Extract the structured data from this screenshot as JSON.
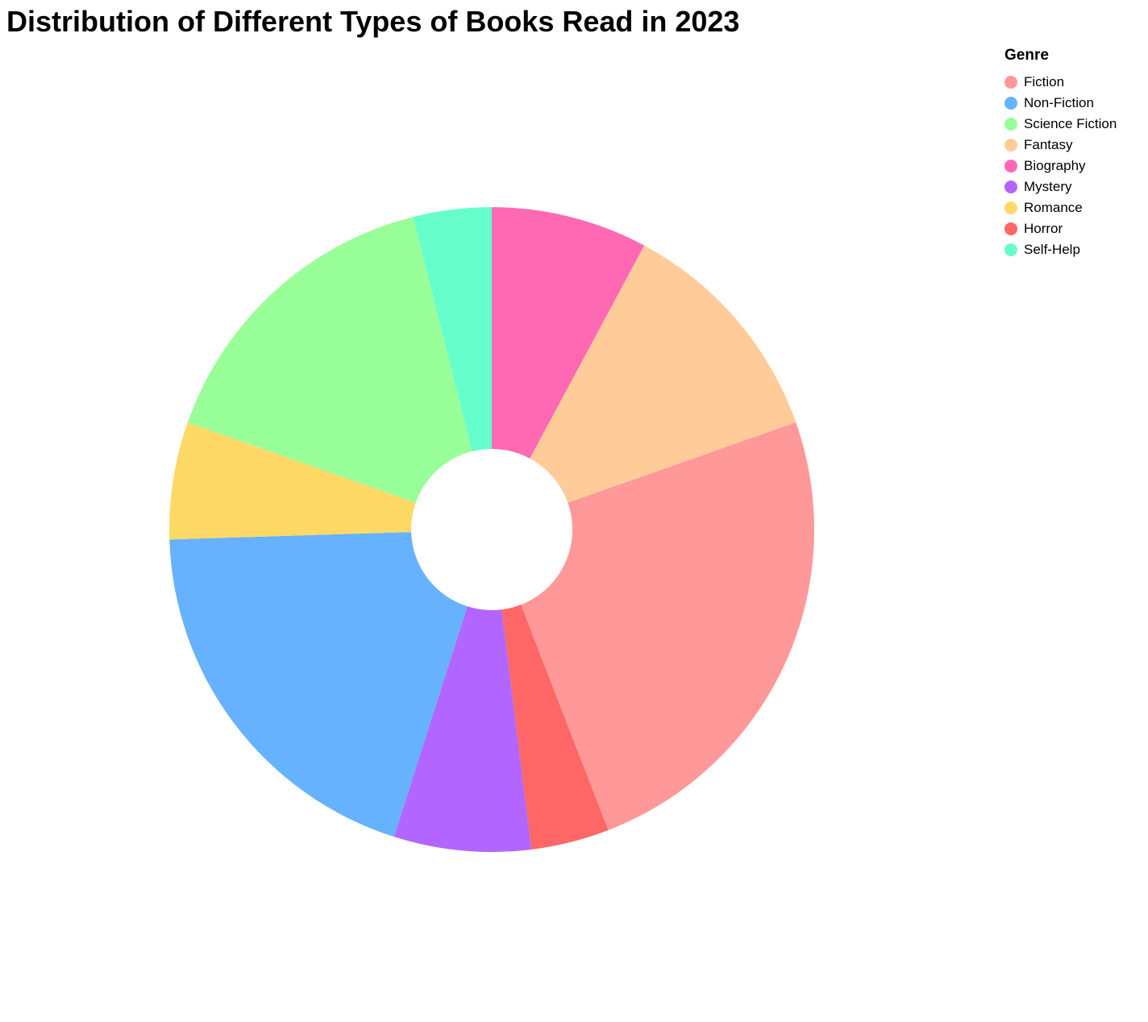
{
  "chart_data": {
    "type": "pie",
    "variant": "donut",
    "title": "Distribution of Different Types of Books Read in 2023",
    "legend": {
      "title": "Genre",
      "placement": "top-right"
    },
    "slices": [
      {
        "label": "Fiction",
        "value": 25,
        "color": "#FF9999"
      },
      {
        "label": "Non-Fiction",
        "value": 20,
        "color": "#66B2FF"
      },
      {
        "label": "Science Fiction",
        "value": 16,
        "color": "#99FF99"
      },
      {
        "label": "Fantasy",
        "value": 12,
        "color": "#FFCC99"
      },
      {
        "label": "Biography",
        "value": 8,
        "color": "#FF69B4"
      },
      {
        "label": "Mystery",
        "value": 7,
        "color": "#B266FF"
      },
      {
        "label": "Romance",
        "value": 6,
        "color": "#FFD966"
      },
      {
        "label": "Horror",
        "value": 4,
        "color": "#FF6666"
      },
      {
        "label": "Self-Help",
        "value": 4,
        "color": "#66FFCC"
      }
    ],
    "order_from_top_clockwise": [
      "Biography",
      "Fantasy",
      "Fiction",
      "Horror",
      "Mystery",
      "Non-Fiction",
      "Romance",
      "Science Fiction",
      "Self-Help"
    ]
  }
}
